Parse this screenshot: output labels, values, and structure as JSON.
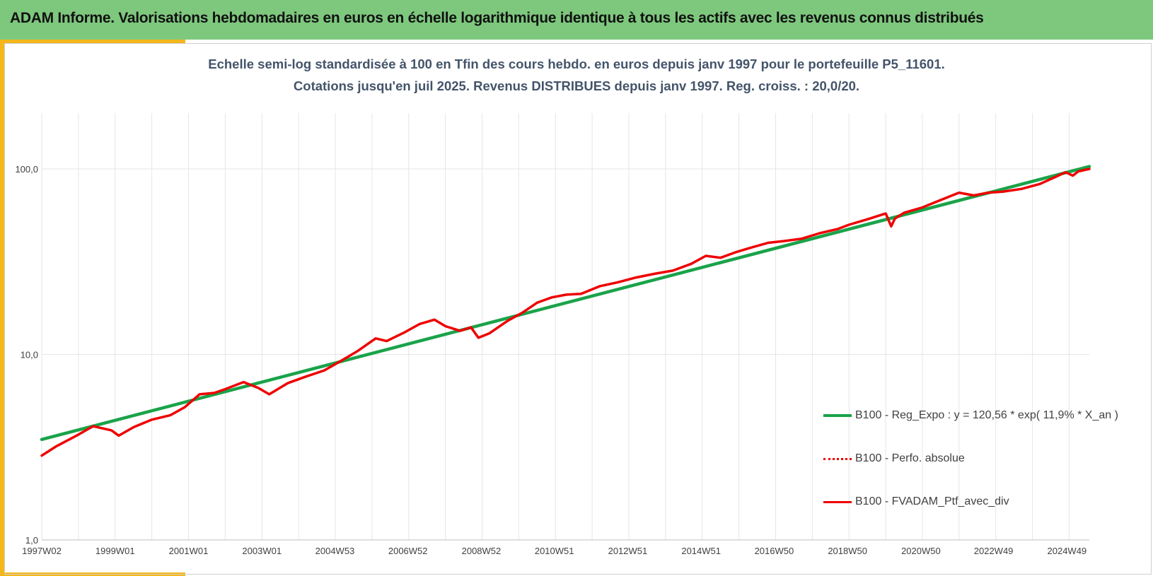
{
  "banner": {
    "title": "ADAM Informe. Valorisations hebdomadaires en euros en échelle logarithmique identique à tous les actifs avec les revenus connus distribués"
  },
  "colors": {
    "banner_bg": "#7ec87e",
    "accent": "#f3b71b",
    "regression": "#1aa34a",
    "portfolio": "#ee0000",
    "grid": "#e6e6e6"
  },
  "chart_data": {
    "type": "line",
    "title": "Echelle semi-log standardisée à 100 en Tfin des cours hebdo.  en euros depuis janv 1997 pour le portefeuille P5_11601.",
    "subtitle": "Cotations jusqu'en juil 2025. Revenus DISTRIBUES depuis janv 1997. Reg. croiss. : 20,0/20.",
    "x_scale": "time (years)",
    "x_range": [
      1997.0,
      2025.55
    ],
    "y_scale": "log10",
    "ylim": [
      1,
      200
    ],
    "y_ticks": [
      1,
      10,
      100
    ],
    "y_tick_labels": [
      "1,0",
      "10,0",
      "100,0"
    ],
    "x_ticks": [
      1997.0,
      1999.0,
      2001.0,
      2003.0,
      2004.99,
      2006.98,
      2008.98,
      2010.97,
      2012.97,
      2014.97,
      2016.96,
      2018.96,
      2020.96,
      2022.94,
      2024.94
    ],
    "x_tick_labels": [
      "1997W02",
      "1999W01",
      "2001W01",
      "2003W01",
      "2004W53",
      "2006W52",
      "2008W52",
      "2010W51",
      "2012W51",
      "2014W51",
      "2016W50",
      "2018W50",
      "2020W50",
      "2022W49",
      "2024W49"
    ],
    "grid": true,
    "legend_position": "bottom-right",
    "series": [
      {
        "name": "B100 - Reg_Expo : y = 120,56 * exp( 11,9% *  X_an )",
        "style": "solid-green",
        "x": [
          1997.0,
          2025.55
        ],
        "values": [
          3.48,
          103.0
        ]
      },
      {
        "name": "B100 - Perfo. absolue",
        "style": "dotted-red",
        "x": [],
        "values": []
      },
      {
        "name": "B100 - FVADAM_Ptf_avec_div",
        "style": "solid-red",
        "x": [
          1997.0,
          1997.4,
          1998.0,
          1998.4,
          1998.9,
          1999.1,
          1999.5,
          2000.0,
          2000.5,
          2000.9,
          2001.3,
          2001.7,
          2002.0,
          2002.5,
          2002.9,
          2003.2,
          2003.7,
          2004.2,
          2004.7,
          2005.1,
          2005.6,
          2006.1,
          2006.4,
          2006.9,
          2007.3,
          2007.7,
          2008.0,
          2008.4,
          2008.7,
          2008.9,
          2009.2,
          2009.7,
          2010.1,
          2010.5,
          2010.9,
          2011.3,
          2011.7,
          2012.2,
          2012.7,
          2013.2,
          2013.7,
          2014.2,
          2014.7,
          2015.1,
          2015.5,
          2015.9,
          2016.3,
          2016.8,
          2017.2,
          2017.7,
          2018.2,
          2018.7,
          2019.0,
          2019.5,
          2020.0,
          2020.15,
          2020.25,
          2020.5,
          2021.0,
          2021.5,
          2022.0,
          2022.4,
          2022.8,
          2023.2,
          2023.7,
          2024.2,
          2024.6,
          2024.9,
          2025.1,
          2025.25,
          2025.55
        ],
        "values": [
          2.85,
          3.2,
          3.7,
          4.1,
          3.9,
          3.65,
          4.05,
          4.45,
          4.7,
          5.2,
          6.1,
          6.2,
          6.5,
          7.1,
          6.6,
          6.1,
          7.0,
          7.6,
          8.2,
          9.1,
          10.4,
          12.2,
          11.8,
          13.2,
          14.6,
          15.4,
          14.2,
          13.4,
          14.0,
          12.3,
          13.0,
          15.2,
          16.8,
          19.0,
          20.3,
          21.0,
          21.2,
          23.3,
          24.5,
          26.0,
          27.2,
          28.3,
          30.8,
          34.0,
          33.2,
          35.5,
          37.5,
          40.0,
          40.8,
          42.0,
          45.0,
          47.5,
          50.0,
          53.5,
          57.5,
          49.0,
          54.0,
          58.0,
          62.0,
          68.0,
          74.5,
          72.0,
          74.5,
          75.5,
          78.0,
          83.0,
          90.0,
          96.0,
          92.0,
          97.0,
          100.0
        ]
      }
    ]
  }
}
